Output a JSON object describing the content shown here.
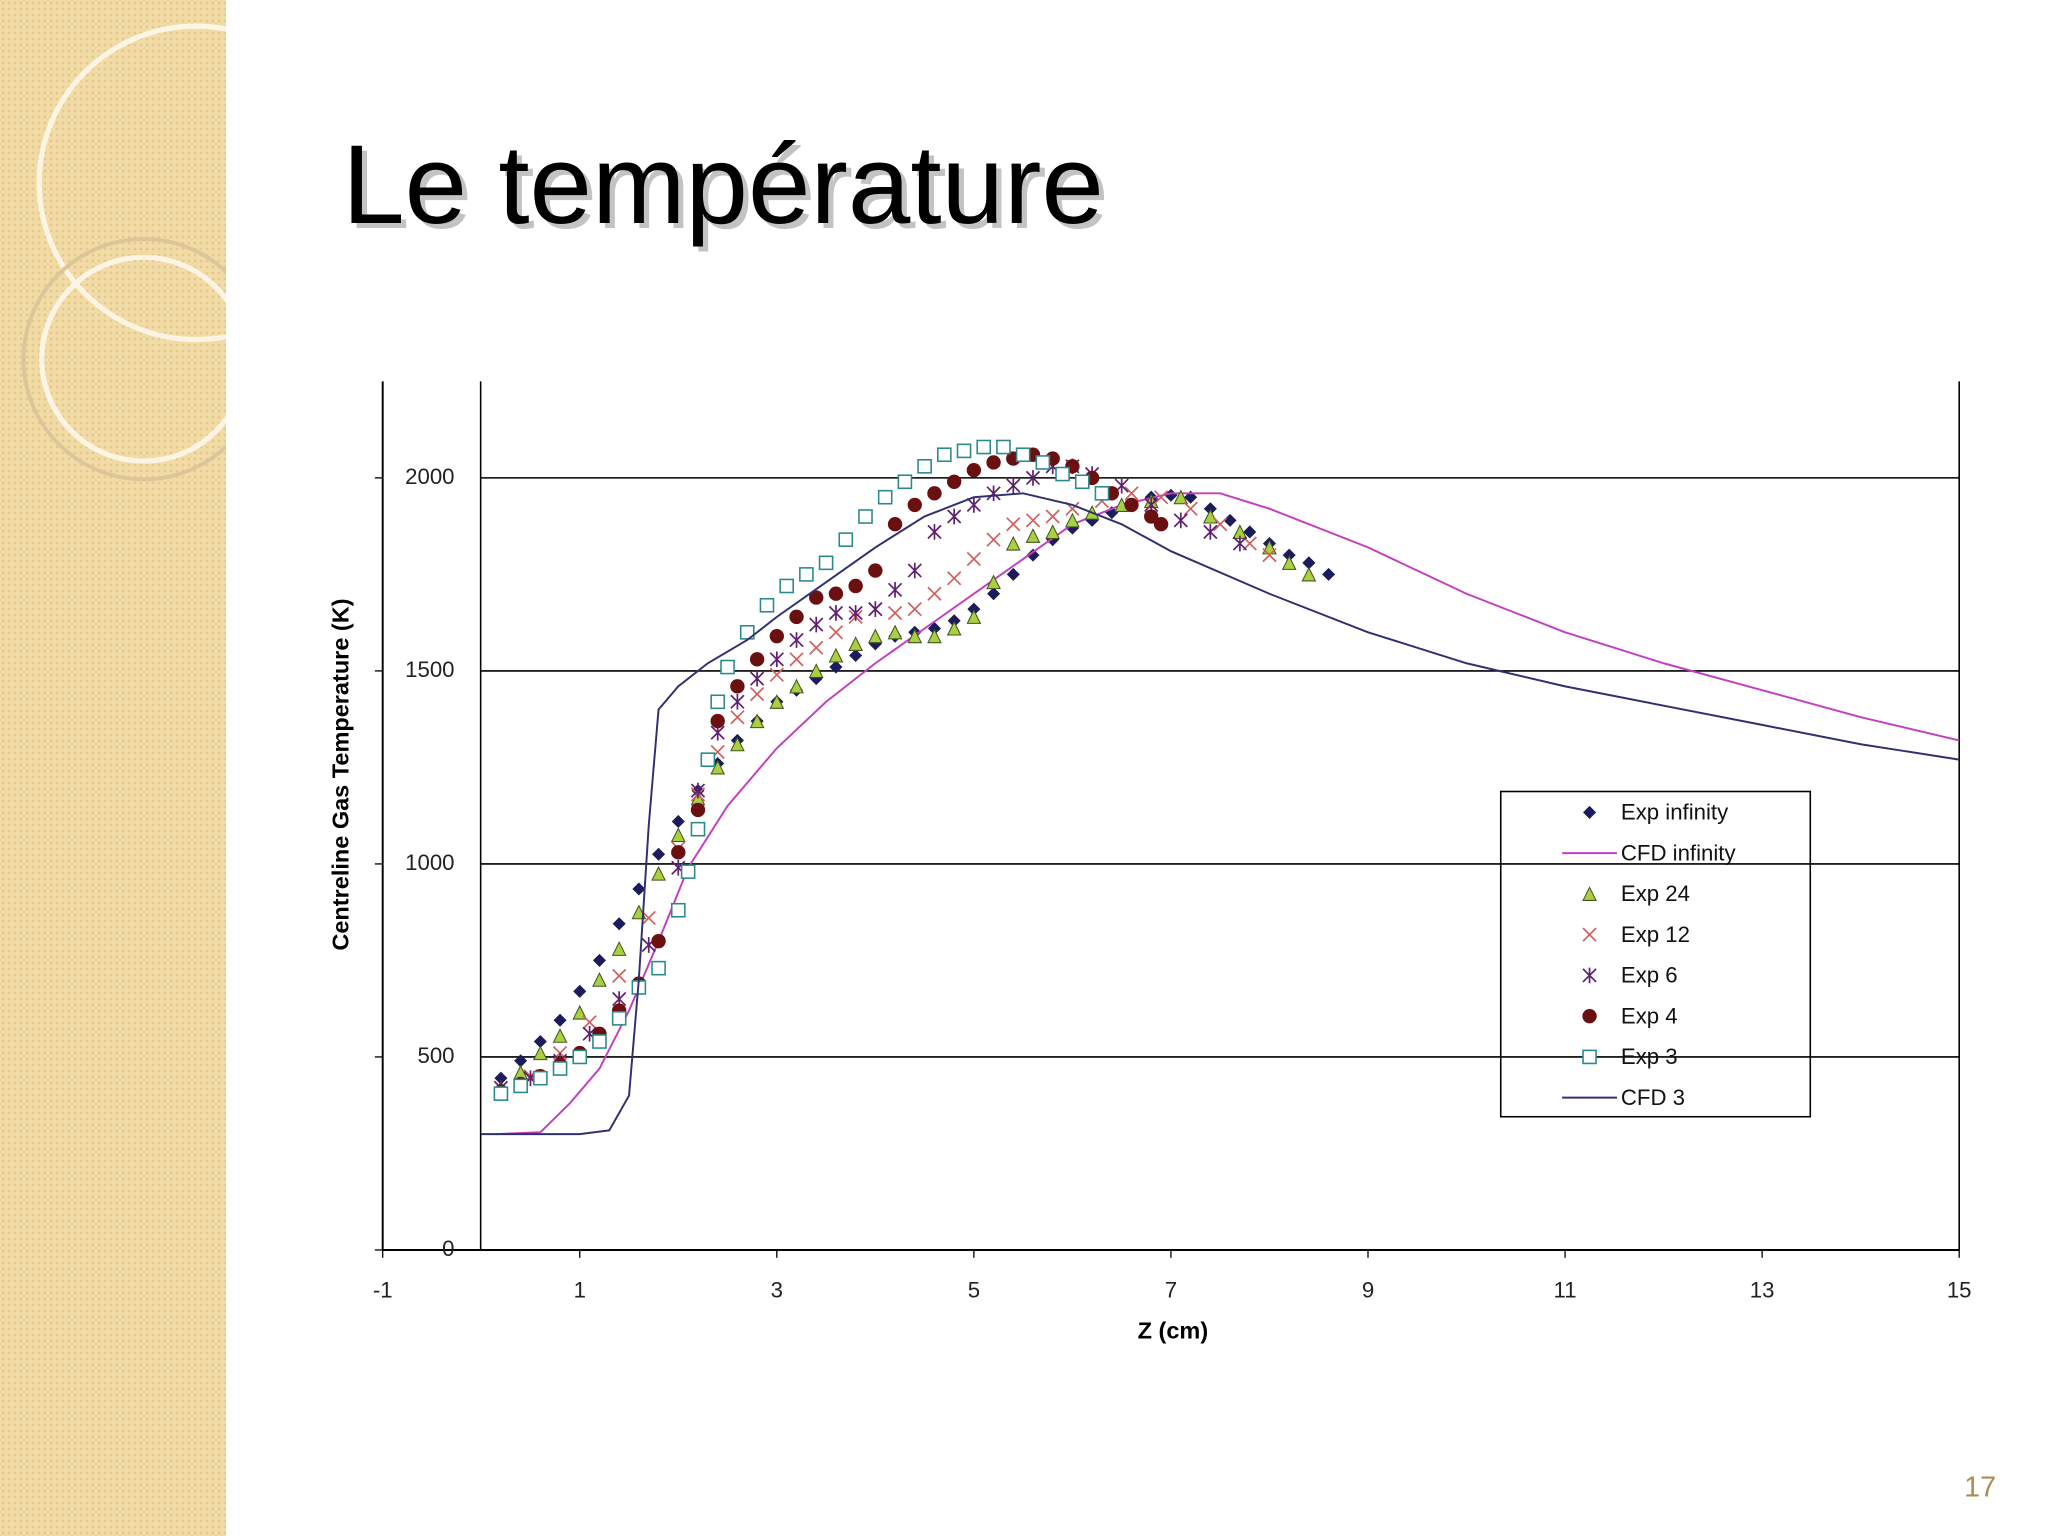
{
  "title": "Le température",
  "slide_number": "17",
  "chart_data": {
    "type": "scatter",
    "x_label": "Z (cm)",
    "y_label": "Centreline Gas Temperature (K)",
    "xlim": [
      -1,
      15
    ],
    "xticks": [
      -1,
      1,
      3,
      5,
      7,
      9,
      11,
      13,
      15
    ],
    "ylim": [
      0,
      2250
    ],
    "yticks": [
      0,
      500,
      1000,
      1500,
      2000
    ],
    "grid": true,
    "legend": "right",
    "series": [
      {
        "name": "Exp infinity",
        "color": "#1c1c5c",
        "mode": "markers",
        "marker": "diamond",
        "x": [
          0.2,
          0.4,
          0.6,
          0.8,
          1.0,
          1.2,
          1.4,
          1.6,
          1.8,
          2.0,
          2.2,
          2.4,
          2.6,
          2.8,
          3.0,
          3.2,
          3.4,
          3.6,
          3.8,
          4.0,
          4.2,
          4.4,
          4.6,
          4.8,
          5.0,
          5.2,
          5.4,
          5.6,
          5.8,
          6.0,
          6.2,
          6.4,
          6.6,
          6.8,
          7.0,
          7.2,
          7.4,
          7.6,
          7.8,
          8.0,
          8.2,
          8.4,
          8.6
        ],
        "values": [
          445,
          490,
          540,
          595,
          670,
          750,
          845,
          935,
          1025,
          1110,
          1190,
          1260,
          1320,
          1370,
          1420,
          1450,
          1480,
          1510,
          1540,
          1570,
          1590,
          1600,
          1610,
          1630,
          1660,
          1700,
          1750,
          1800,
          1840,
          1870,
          1890,
          1910,
          1930,
          1950,
          1955,
          1950,
          1920,
          1890,
          1860,
          1830,
          1800,
          1780,
          1750
        ]
      },
      {
        "name": "CFD infinity",
        "color": "#c040c0",
        "mode": "line",
        "x": [
          0.15,
          0.6,
          0.9,
          1.2,
          1.5,
          1.8,
          2.1,
          2.5,
          3,
          3.5,
          4,
          4.5,
          5,
          5.5,
          6,
          6.5,
          7,
          7.5,
          8,
          9,
          10,
          11,
          12,
          13,
          14,
          15
        ],
        "values": [
          300,
          305,
          380,
          470,
          620,
          800,
          990,
          1150,
          1300,
          1420,
          1520,
          1610,
          1700,
          1790,
          1880,
          1930,
          1960,
          1960,
          1920,
          1820,
          1700,
          1600,
          1520,
          1450,
          1380,
          1320
        ]
      },
      {
        "name": "Exp 24",
        "color": "#a8d040",
        "mode": "markers",
        "marker": "triangle",
        "x": [
          0.2,
          0.4,
          0.6,
          0.8,
          1.0,
          1.2,
          1.4,
          1.6,
          1.8,
          2.0,
          2.2,
          2.4,
          2.6,
          2.8,
          3.0,
          3.2,
          3.4,
          3.6,
          3.8,
          4.0,
          4.2,
          4.4,
          4.6,
          4.8,
          5.0,
          5.2,
          5.4,
          5.6,
          5.8,
          6.0,
          6.2,
          6.5,
          6.8,
          7.1,
          7.4,
          7.7,
          8.0,
          8.2,
          8.4
        ],
        "values": [
          420,
          460,
          510,
          555,
          615,
          700,
          780,
          875,
          975,
          1075,
          1170,
          1250,
          1310,
          1370,
          1420,
          1460,
          1500,
          1540,
          1570,
          1590,
          1600,
          1590,
          1590,
          1610,
          1640,
          1730,
          1830,
          1850,
          1860,
          1890,
          1910,
          1930,
          1940,
          1950,
          1900,
          1860,
          1820,
          1780,
          1750
        ]
      },
      {
        "name": "Exp 12",
        "color": "#d06060",
        "mode": "markers",
        "marker": "cross",
        "x": [
          0.2,
          0.5,
          0.8,
          1.1,
          1.4,
          1.7,
          2.0,
          2.2,
          2.4,
          2.6,
          2.8,
          3.0,
          3.2,
          3.4,
          3.6,
          3.8,
          4.0,
          4.2,
          4.4,
          4.6,
          4.8,
          5.0,
          5.2,
          5.4,
          5.6,
          5.8,
          6.0,
          6.3,
          6.6,
          6.9,
          7.2,
          7.5,
          7.8,
          8.0
        ],
        "values": [
          420,
          450,
          510,
          590,
          710,
          860,
          1040,
          1180,
          1290,
          1380,
          1440,
          1490,
          1530,
          1560,
          1600,
          1640,
          1660,
          1650,
          1660,
          1700,
          1740,
          1790,
          1840,
          1880,
          1890,
          1900,
          1920,
          1940,
          1960,
          1950,
          1920,
          1880,
          1830,
          1800
        ]
      },
      {
        "name": "Exp 6",
        "color": "#602070",
        "mode": "markers",
        "marker": "asterisk",
        "x": [
          0.2,
          0.5,
          0.8,
          1.1,
          1.4,
          1.7,
          2.0,
          2.2,
          2.4,
          2.6,
          2.8,
          3.0,
          3.2,
          3.4,
          3.6,
          3.8,
          4.0,
          4.2,
          4.4,
          4.6,
          4.8,
          5.0,
          5.2,
          5.4,
          5.6,
          5.8,
          6.0,
          6.2,
          6.5,
          6.8,
          7.1,
          7.4,
          7.7
        ],
        "values": [
          420,
          445,
          490,
          560,
          650,
          790,
          990,
          1190,
          1340,
          1420,
          1480,
          1530,
          1580,
          1620,
          1650,
          1650,
          1660,
          1710,
          1760,
          1860,
          1900,
          1930,
          1960,
          1980,
          2000,
          2030,
          2030,
          2010,
          1980,
          1930,
          1890,
          1860,
          1830
        ]
      },
      {
        "name": "Exp 4",
        "color": "#6a1010",
        "mode": "markers",
        "marker": "circle",
        "x": [
          0.2,
          0.4,
          0.6,
          0.8,
          1.0,
          1.2,
          1.4,
          1.6,
          1.8,
          2.0,
          2.2,
          2.3,
          2.4,
          2.6,
          2.8,
          3.0,
          3.2,
          3.4,
          3.6,
          3.8,
          4.0,
          4.2,
          4.4,
          4.6,
          4.8,
          5.0,
          5.2,
          5.4,
          5.6,
          5.8,
          6.0,
          6.2,
          6.4,
          6.6,
          6.8,
          6.9
        ],
        "values": [
          410,
          430,
          450,
          480,
          510,
          560,
          620,
          690,
          800,
          1030,
          1140,
          1270,
          1370,
          1460,
          1530,
          1590,
          1640,
          1690,
          1700,
          1720,
          1760,
          1880,
          1930,
          1960,
          1990,
          2020,
          2040,
          2050,
          2060,
          2050,
          2030,
          2000,
          1960,
          1930,
          1900,
          1880
        ]
      },
      {
        "name": "Exp 3",
        "color": "#2a8a8a",
        "mode": "markers",
        "marker": "square",
        "x": [
          0.2,
          0.4,
          0.6,
          0.8,
          1.0,
          1.2,
          1.4,
          1.6,
          1.8,
          2.0,
          2.1,
          2.2,
          2.3,
          2.4,
          2.5,
          2.7,
          2.9,
          3.1,
          3.3,
          3.5,
          3.7,
          3.9,
          4.1,
          4.3,
          4.5,
          4.7,
          4.9,
          5.1,
          5.3,
          5.5,
          5.7,
          5.9,
          6.1,
          6.3
        ],
        "values": [
          405,
          425,
          445,
          470,
          500,
          540,
          600,
          680,
          730,
          880,
          980,
          1090,
          1270,
          1420,
          1510,
          1600,
          1670,
          1720,
          1750,
          1780,
          1840,
          1900,
          1950,
          1990,
          2030,
          2060,
          2070,
          2080,
          2080,
          2060,
          2040,
          2010,
          1990,
          1960
        ]
      },
      {
        "name": "CFD 3",
        "color": "#303070",
        "mode": "line",
        "x": [
          0.0,
          0.5,
          1.0,
          1.3,
          1.5,
          1.6,
          1.7,
          1.8,
          2.0,
          2.3,
          2.7,
          3.0,
          3.5,
          4,
          4.5,
          5,
          5.5,
          6,
          6.5,
          7,
          8,
          9,
          10,
          11,
          12,
          13,
          14,
          15
        ],
        "values": [
          300,
          300,
          300,
          310,
          400,
          700,
          1100,
          1400,
          1460,
          1520,
          1580,
          1640,
          1730,
          1820,
          1900,
          1950,
          1960,
          1930,
          1880,
          1810,
          1700,
          1600,
          1520,
          1460,
          1410,
          1360,
          1310,
          1270
        ]
      }
    ]
  }
}
